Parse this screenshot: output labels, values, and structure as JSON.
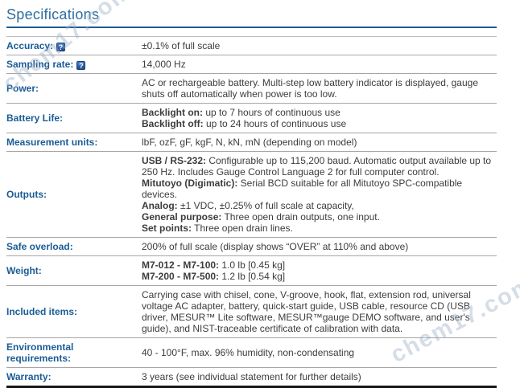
{
  "title": "Specifications",
  "watermark": {
    "text": "chem17.com"
  },
  "help_icon": {
    "glyph": "?"
  },
  "colors": {
    "title_blue": "#2d6ea1",
    "label_blue": "#1a5c96",
    "title_rule_blue": "#1f5c96",
    "body_text": "#3c3c3c",
    "row_divider": "#a6a6a6",
    "table_bottom_border": "#161616",
    "help_icon_bg": "#2b5fa3",
    "watermark_gray": "#9badc6"
  },
  "table": {
    "rows": [
      {
        "key": "accuracy",
        "label": "Accuracy:",
        "help": true,
        "value_lines": [
          [
            {
              "text": "±0.1% of full scale"
            }
          ]
        ]
      },
      {
        "key": "sampling-rate",
        "label": "Sampling rate:",
        "help": true,
        "value_lines": [
          [
            {
              "text": "14,000 Hz"
            }
          ]
        ]
      },
      {
        "key": "power",
        "label": "Power:",
        "help": false,
        "value_lines": [
          [
            {
              "text": "AC or rechargeable battery. Multi-step low battery indicator is displayed, gauge shuts off automatically when power is too low."
            }
          ]
        ]
      },
      {
        "key": "battery-life",
        "label": "Battery Life:",
        "help": false,
        "value_lines": [
          [
            {
              "text": "Backlight on:",
              "bold": true
            },
            {
              "text": " up to 7 hours of continuous use"
            }
          ],
          [
            {
              "text": "Backlight off:",
              "bold": true
            },
            {
              "text": " up to 24 hours of continuous use"
            }
          ]
        ]
      },
      {
        "key": "measurement-units",
        "label": "Measurement units:",
        "help": false,
        "value_lines": [
          [
            {
              "text": "lbF, ozF, gF, kgF, N, kN, mN (depending on model)"
            }
          ]
        ]
      },
      {
        "key": "outputs",
        "label": "Outputs:",
        "help": false,
        "value_lines": [
          [
            {
              "text": "USB / RS-232:",
              "bold": true
            },
            {
              "text": " Configurable up to 115,200 baud. Automatic output available up to 250 Hz. Includes Gauge Control Language 2 for full computer control."
            }
          ],
          [
            {
              "text": "Mitutoyo (Digimatic):",
              "bold": true
            },
            {
              "text": " Serial BCD suitable for all Mitutoyo SPC-compatible devices."
            }
          ],
          [
            {
              "text": "Analog:",
              "bold": true
            },
            {
              "text": " ±1 VDC, ±0.25% of full scale at capacity,"
            }
          ],
          [
            {
              "text": "General purpose:",
              "bold": true
            },
            {
              "text": " Three open drain outputs, one input."
            }
          ],
          [
            {
              "text": "Set points:",
              "bold": true
            },
            {
              "text": " Three open drain lines."
            }
          ]
        ]
      },
      {
        "key": "safe-overload",
        "label": "Safe overload:",
        "help": false,
        "value_lines": [
          [
            {
              "text": "200% of full scale (display shows “OVER” at 110% and above)"
            }
          ]
        ]
      },
      {
        "key": "weight",
        "label": "Weight:",
        "help": false,
        "value_lines": [
          [
            {
              "text": "M7-012 - M7-100:",
              "bold": true
            },
            {
              "text": " 1.0 lb [0.45 kg]"
            }
          ],
          [
            {
              "text": "M7-200 - M7-500:",
              "bold": true
            },
            {
              "text": " 1.2 lb [0.54 kg]"
            }
          ]
        ]
      },
      {
        "key": "included-items",
        "label": "Included items:",
        "help": false,
        "value_lines": [
          [
            {
              "text": "Carrying case with chisel, cone, V-groove, hook, flat, extension rod, universal voltage AC adapter, battery, quick-start guide, USB cable, resource CD (USB driver, MESUR™ Lite software, MESUR™gauge DEMO software, and user's guide), and NIST-traceable certificate of calibration with data."
            }
          ]
        ]
      },
      {
        "key": "environmental-requirements",
        "label": "Environmental requirements:",
        "help": false,
        "value_lines": [
          [
            {
              "text": "40 - 100°F, max. 96% humidity, non-condensating"
            }
          ]
        ]
      },
      {
        "key": "warranty",
        "label": "Warranty:",
        "help": false,
        "value_lines": [
          [
            {
              "text": "3 years (see individual statement for further details)"
            }
          ]
        ]
      }
    ]
  }
}
